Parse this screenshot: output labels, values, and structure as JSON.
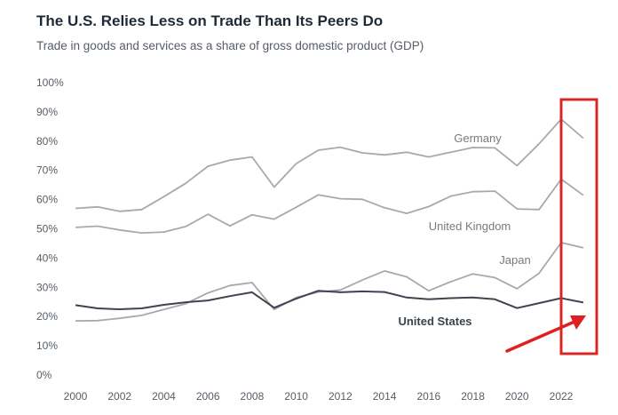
{
  "header": {
    "title": "The U.S. Relies Less on Trade Than Its Peers Do",
    "subtitle": "Trade in goods and services as a share of gross domestic product (GDP)"
  },
  "colors": {
    "peer_line": "#a9a9a9",
    "us_line": "#3d4550",
    "highlight_box": "#d62828",
    "arrow": "#e02020"
  },
  "chart_data": {
    "type": "line",
    "title": "The U.S. Relies Less on Trade Than Its Peers Do",
    "subtitle": "Trade in goods and services as a share of gross domestic product (GDP)",
    "x": [
      2000,
      2001,
      2002,
      2003,
      2004,
      2005,
      2006,
      2007,
      2008,
      2009,
      2010,
      2011,
      2012,
      2013,
      2014,
      2015,
      2016,
      2017,
      2018,
      2019,
      2020,
      2021,
      2022,
      2023
    ],
    "x_tick_labels": [
      "2000",
      "2002",
      "2004",
      "2006",
      "2008",
      "2010",
      "2012",
      "2014",
      "2016",
      "2018",
      "2020",
      "2022"
    ],
    "y_tick_labels": [
      "0%",
      "10%",
      "20%",
      "30%",
      "40%",
      "50%",
      "60%",
      "70%",
      "80%",
      "90%",
      "100%"
    ],
    "ylim": [
      0,
      100
    ],
    "grid": false,
    "series": [
      {
        "name": "Germany",
        "values": [
          57,
          57.5,
          56,
          56.6,
          61,
          65.6,
          71.4,
          73.5,
          74.6,
          64.3,
          72.3,
          76.9,
          77.9,
          76,
          75.3,
          76.2,
          74.6,
          76.2,
          77.8,
          77.7,
          71.6,
          79.1,
          87.5,
          81
        ]
      },
      {
        "name": "United Kingdom",
        "values": [
          50.5,
          50.9,
          49.6,
          48.6,
          48.9,
          50.8,
          55,
          51,
          54.8,
          53.3,
          57.4,
          61.6,
          60.3,
          60.1,
          57.2,
          55.3,
          57.6,
          61.2,
          62.7,
          62.9,
          56.8,
          56.6,
          67,
          61.5
        ]
      },
      {
        "name": "Japan",
        "values": [
          18.5,
          18.6,
          19.4,
          20.4,
          22.4,
          24.4,
          28.1,
          30.6,
          31.6,
          22.4,
          26.5,
          28.4,
          29.1,
          32.5,
          35.6,
          33.6,
          28.8,
          31.9,
          34.6,
          33.3,
          29.5,
          34.8,
          45.3,
          43.5
        ]
      },
      {
        "name": "United States",
        "values": [
          23.9,
          22.8,
          22.5,
          22.8,
          24,
          24.9,
          25.5,
          27,
          28.3,
          23,
          26.1,
          28.8,
          28.3,
          28.6,
          28.4,
          26.5,
          25.9,
          26.3,
          26.5,
          25.9,
          22.9,
          24.6,
          26.3,
          24.8
        ]
      }
    ]
  }
}
